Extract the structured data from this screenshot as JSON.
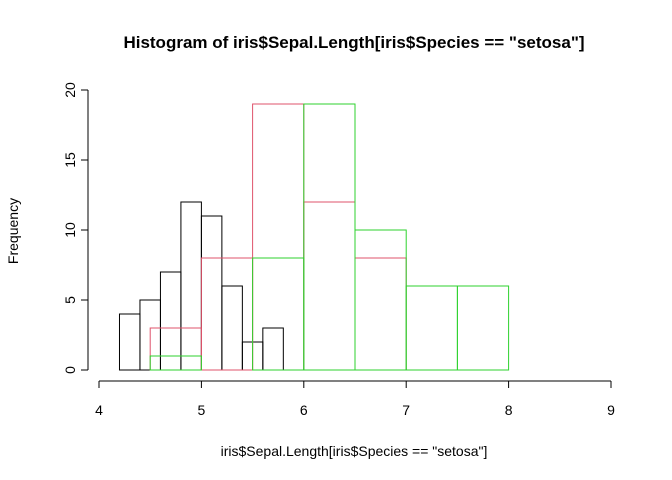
{
  "chart_data": {
    "type": "bar",
    "subtype": "overlaid-histogram",
    "title": "Histogram of iris$Sepal.Length[iris$Species == \"setosa\"]",
    "xlabel": "iris$Sepal.Length[iris$Species == \"setosa\"]",
    "ylabel": "Frequency",
    "xlim": [
      4,
      9
    ],
    "ylim": [
      0,
      20
    ],
    "x_ticks": [
      "4",
      "5",
      "6",
      "7",
      "8",
      "9"
    ],
    "y_ticks": [
      "0",
      "5",
      "10",
      "15",
      "20"
    ],
    "grid": false,
    "legend": "none",
    "series": [
      {
        "color": "#000000",
        "bins": [
          {
            "x0": 4.2,
            "x1": 4.4,
            "count": 4
          },
          {
            "x0": 4.4,
            "x1": 4.6,
            "count": 5
          },
          {
            "x0": 4.6,
            "x1": 4.8,
            "count": 7
          },
          {
            "x0": 4.8,
            "x1": 5.0,
            "count": 12
          },
          {
            "x0": 5.0,
            "x1": 5.2,
            "count": 11
          },
          {
            "x0": 5.2,
            "x1": 5.4,
            "count": 6
          },
          {
            "x0": 5.4,
            "x1": 5.6,
            "count": 2
          },
          {
            "x0": 5.6,
            "x1": 5.8,
            "count": 3
          }
        ]
      },
      {
        "color": "#DF536B",
        "bins": [
          {
            "x0": 4.5,
            "x1": 5.0,
            "count": 3
          },
          {
            "x0": 5.0,
            "x1": 5.5,
            "count": 8
          },
          {
            "x0": 5.5,
            "x1": 6.0,
            "count": 19
          },
          {
            "x0": 6.0,
            "x1": 6.5,
            "count": 12
          },
          {
            "x0": 6.5,
            "x1": 7.0,
            "count": 8
          }
        ]
      },
      {
        "color": "#2ED22E",
        "bins": [
          {
            "x0": 4.5,
            "x1": 5.0,
            "count": 1
          },
          {
            "x0": 5.5,
            "x1": 6.0,
            "count": 8
          },
          {
            "x0": 6.0,
            "x1": 6.5,
            "count": 19
          },
          {
            "x0": 6.5,
            "x1": 7.0,
            "count": 10
          },
          {
            "x0": 7.0,
            "x1": 7.5,
            "count": 6
          },
          {
            "x0": 7.5,
            "x1": 8.0,
            "count": 6
          }
        ]
      }
    ]
  }
}
